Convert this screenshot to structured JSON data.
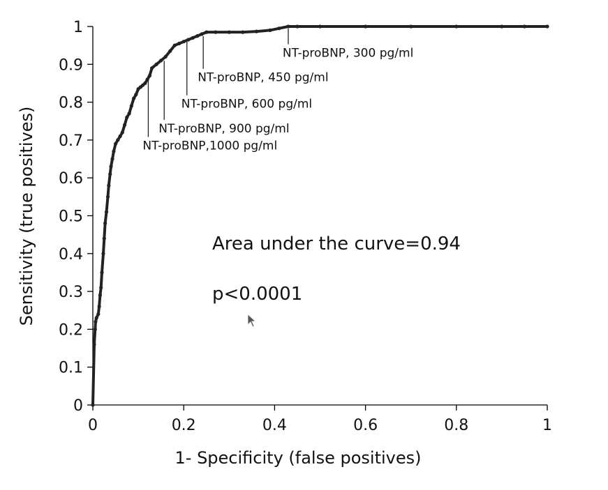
{
  "chart_data": {
    "type": "line",
    "title": "",
    "xlabel": "1- Specificity (false positives)",
    "ylabel": "Sensitivity (true positives)",
    "xlim": [
      0,
      1
    ],
    "ylim": [
      0,
      1
    ],
    "x_ticks": [
      0,
      0.2,
      0.4,
      0.6,
      0.8,
      1
    ],
    "y_ticks": [
      0,
      0.1,
      0.2,
      0.3,
      0.4,
      0.5,
      0.6,
      0.7,
      0.8,
      0.9,
      1
    ],
    "x_tick_labels": [
      "0",
      "0.2",
      "0.4",
      "0.6",
      "0.8",
      "1"
    ],
    "y_tick_labels": [
      "0",
      "0.1",
      "0.2",
      "0.3",
      "0.4",
      "0.5",
      "0.6",
      "0.7",
      "0.8",
      "0.9",
      "1"
    ],
    "grid": false,
    "line_color": "#222222",
    "series": [
      {
        "x": [
          0,
          0.003,
          0.005,
          0.006,
          0.008,
          0.012,
          0.014,
          0.016,
          0.018,
          0.02,
          0.023,
          0.025,
          0.027,
          0.03,
          0.033,
          0.035,
          0.038,
          0.04,
          0.043,
          0.046,
          0.05,
          0.055,
          0.06,
          0.065,
          0.07,
          0.075,
          0.08,
          0.085,
          0.09,
          0.095,
          0.1,
          0.105,
          0.11,
          0.115,
          0.12,
          0.125,
          0.13,
          0.14,
          0.15,
          0.16,
          0.17,
          0.18,
          0.19,
          0.2,
          0.21,
          0.22,
          0.23,
          0.24,
          0.25,
          0.27,
          0.3,
          0.33,
          0.36,
          0.39,
          0.41,
          0.43,
          0.45,
          0.5,
          0.6,
          0.7,
          0.8,
          0.9,
          0.95,
          1.0
        ],
        "y": [
          0,
          0.16,
          0.2,
          0.22,
          0.23,
          0.24,
          0.26,
          0.29,
          0.31,
          0.35,
          0.4,
          0.44,
          0.48,
          0.51,
          0.55,
          0.58,
          0.61,
          0.63,
          0.65,
          0.67,
          0.69,
          0.7,
          0.71,
          0.72,
          0.74,
          0.76,
          0.77,
          0.79,
          0.81,
          0.82,
          0.835,
          0.84,
          0.845,
          0.85,
          0.86,
          0.87,
          0.89,
          0.9,
          0.91,
          0.92,
          0.935,
          0.95,
          0.955,
          0.96,
          0.965,
          0.97,
          0.975,
          0.98,
          0.985,
          0.985,
          0.985,
          0.985,
          0.987,
          0.99,
          0.995,
          1.0,
          1.0,
          1.0,
          1.0,
          1.0,
          1.0,
          1.0,
          1.0,
          1.0
        ]
      }
    ],
    "annotations": [
      {
        "text": "NT-proBNP, 300 pg/ml",
        "x": 0.43,
        "y": 1.0,
        "label_y": 0.92
      },
      {
        "text": "NT-proBNP, 450 pg/ml",
        "x": 0.243,
        "y": 0.98,
        "label_y": 0.855
      },
      {
        "text": "NT-proBNP, 600 pg/ml",
        "x": 0.207,
        "y": 0.965,
        "label_y": 0.785
      },
      {
        "text": "NT-proBNP, 900 pg/ml",
        "x": 0.157,
        "y": 0.915,
        "label_y": 0.72
      },
      {
        "text": "NT-proBNP,1000 pg/ml",
        "x": 0.122,
        "y": 0.865,
        "label_y": 0.675
      }
    ],
    "inset_text": [
      "Area under the curve=0.94",
      "p<0.0001"
    ]
  }
}
